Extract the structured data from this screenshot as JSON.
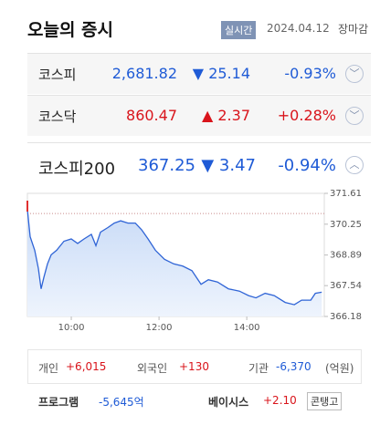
{
  "header": {
    "title": "오늘의 증시",
    "badge": "실시간",
    "date": "2024.04.12",
    "status": "장마감"
  },
  "indices": [
    {
      "name": "코스피",
      "value": "2,681.82",
      "change": "▼ 25.14",
      "rate": "-0.93%",
      "direction": "down"
    },
    {
      "name": "코스닥",
      "value": "860.47",
      "change": "▲ 2.37",
      "rate": "+0.28%",
      "direction": "up"
    },
    {
      "name": "코스피200",
      "value": "367.25",
      "change": "▼ 3.47",
      "rate": "-0.94%",
      "direction": "down"
    }
  ],
  "chart_data": {
    "type": "line",
    "x": [
      0,
      3.75,
      10,
      15,
      18.75,
      22.5,
      27.5,
      32.5,
      40,
      50,
      60,
      68.75,
      77.5,
      87.5,
      93.75,
      100,
      110,
      118.75,
      127.5,
      137.5,
      147.5,
      156.25,
      165,
      175,
      187.5,
      200,
      212.5,
      225,
      237.5,
      247.5,
      260,
      275,
      290,
      302.5,
      312.5,
      325,
      337.5,
      352.5,
      365,
      375,
      387.5,
      393.75,
      402.5
    ],
    "series": [
      {
        "color": "#2f64d6",
        "values": [
          370.9,
          369.7,
          369.1,
          368.3,
          367.4,
          367.9,
          368.5,
          368.9,
          369.1,
          369.5,
          369.6,
          369.4,
          369.6,
          369.8,
          369.3,
          369.9,
          370.1,
          370.3,
          370.4,
          370.3,
          370.3,
          370.0,
          369.6,
          369.1,
          368.7,
          368.5,
          368.4,
          368.2,
          367.6,
          367.8,
          367.7,
          367.4,
          367.3,
          367.1,
          367.0,
          367.2,
          367.1,
          366.8,
          366.7,
          366.9,
          366.9,
          367.2,
          367.25
        ]
      }
    ],
    "reference": 370.72,
    "xlim": [
      0,
      406
    ],
    "xticks": [
      {
        "value": 60,
        "label": "10:00"
      },
      {
        "value": 180,
        "label": "12:00"
      },
      {
        "value": 300,
        "label": "14:00"
      }
    ],
    "ylim": [
      366.18,
      371.61
    ],
    "yticks": [
      371.61,
      370.25,
      368.89,
      367.54,
      366.18
    ]
  },
  "investors": {
    "items": [
      {
        "label": "개인",
        "value": "+6,015"
      },
      {
        "label": "외국인",
        "value": "+130"
      },
      {
        "label": "기관",
        "value": "-6,370"
      }
    ],
    "unit": "(억원)"
  },
  "program": {
    "label": "프로그램",
    "value": "-5,645억",
    "basis_label": "베이시스",
    "basis_value": "+2.10",
    "tag": "콘탱고"
  }
}
